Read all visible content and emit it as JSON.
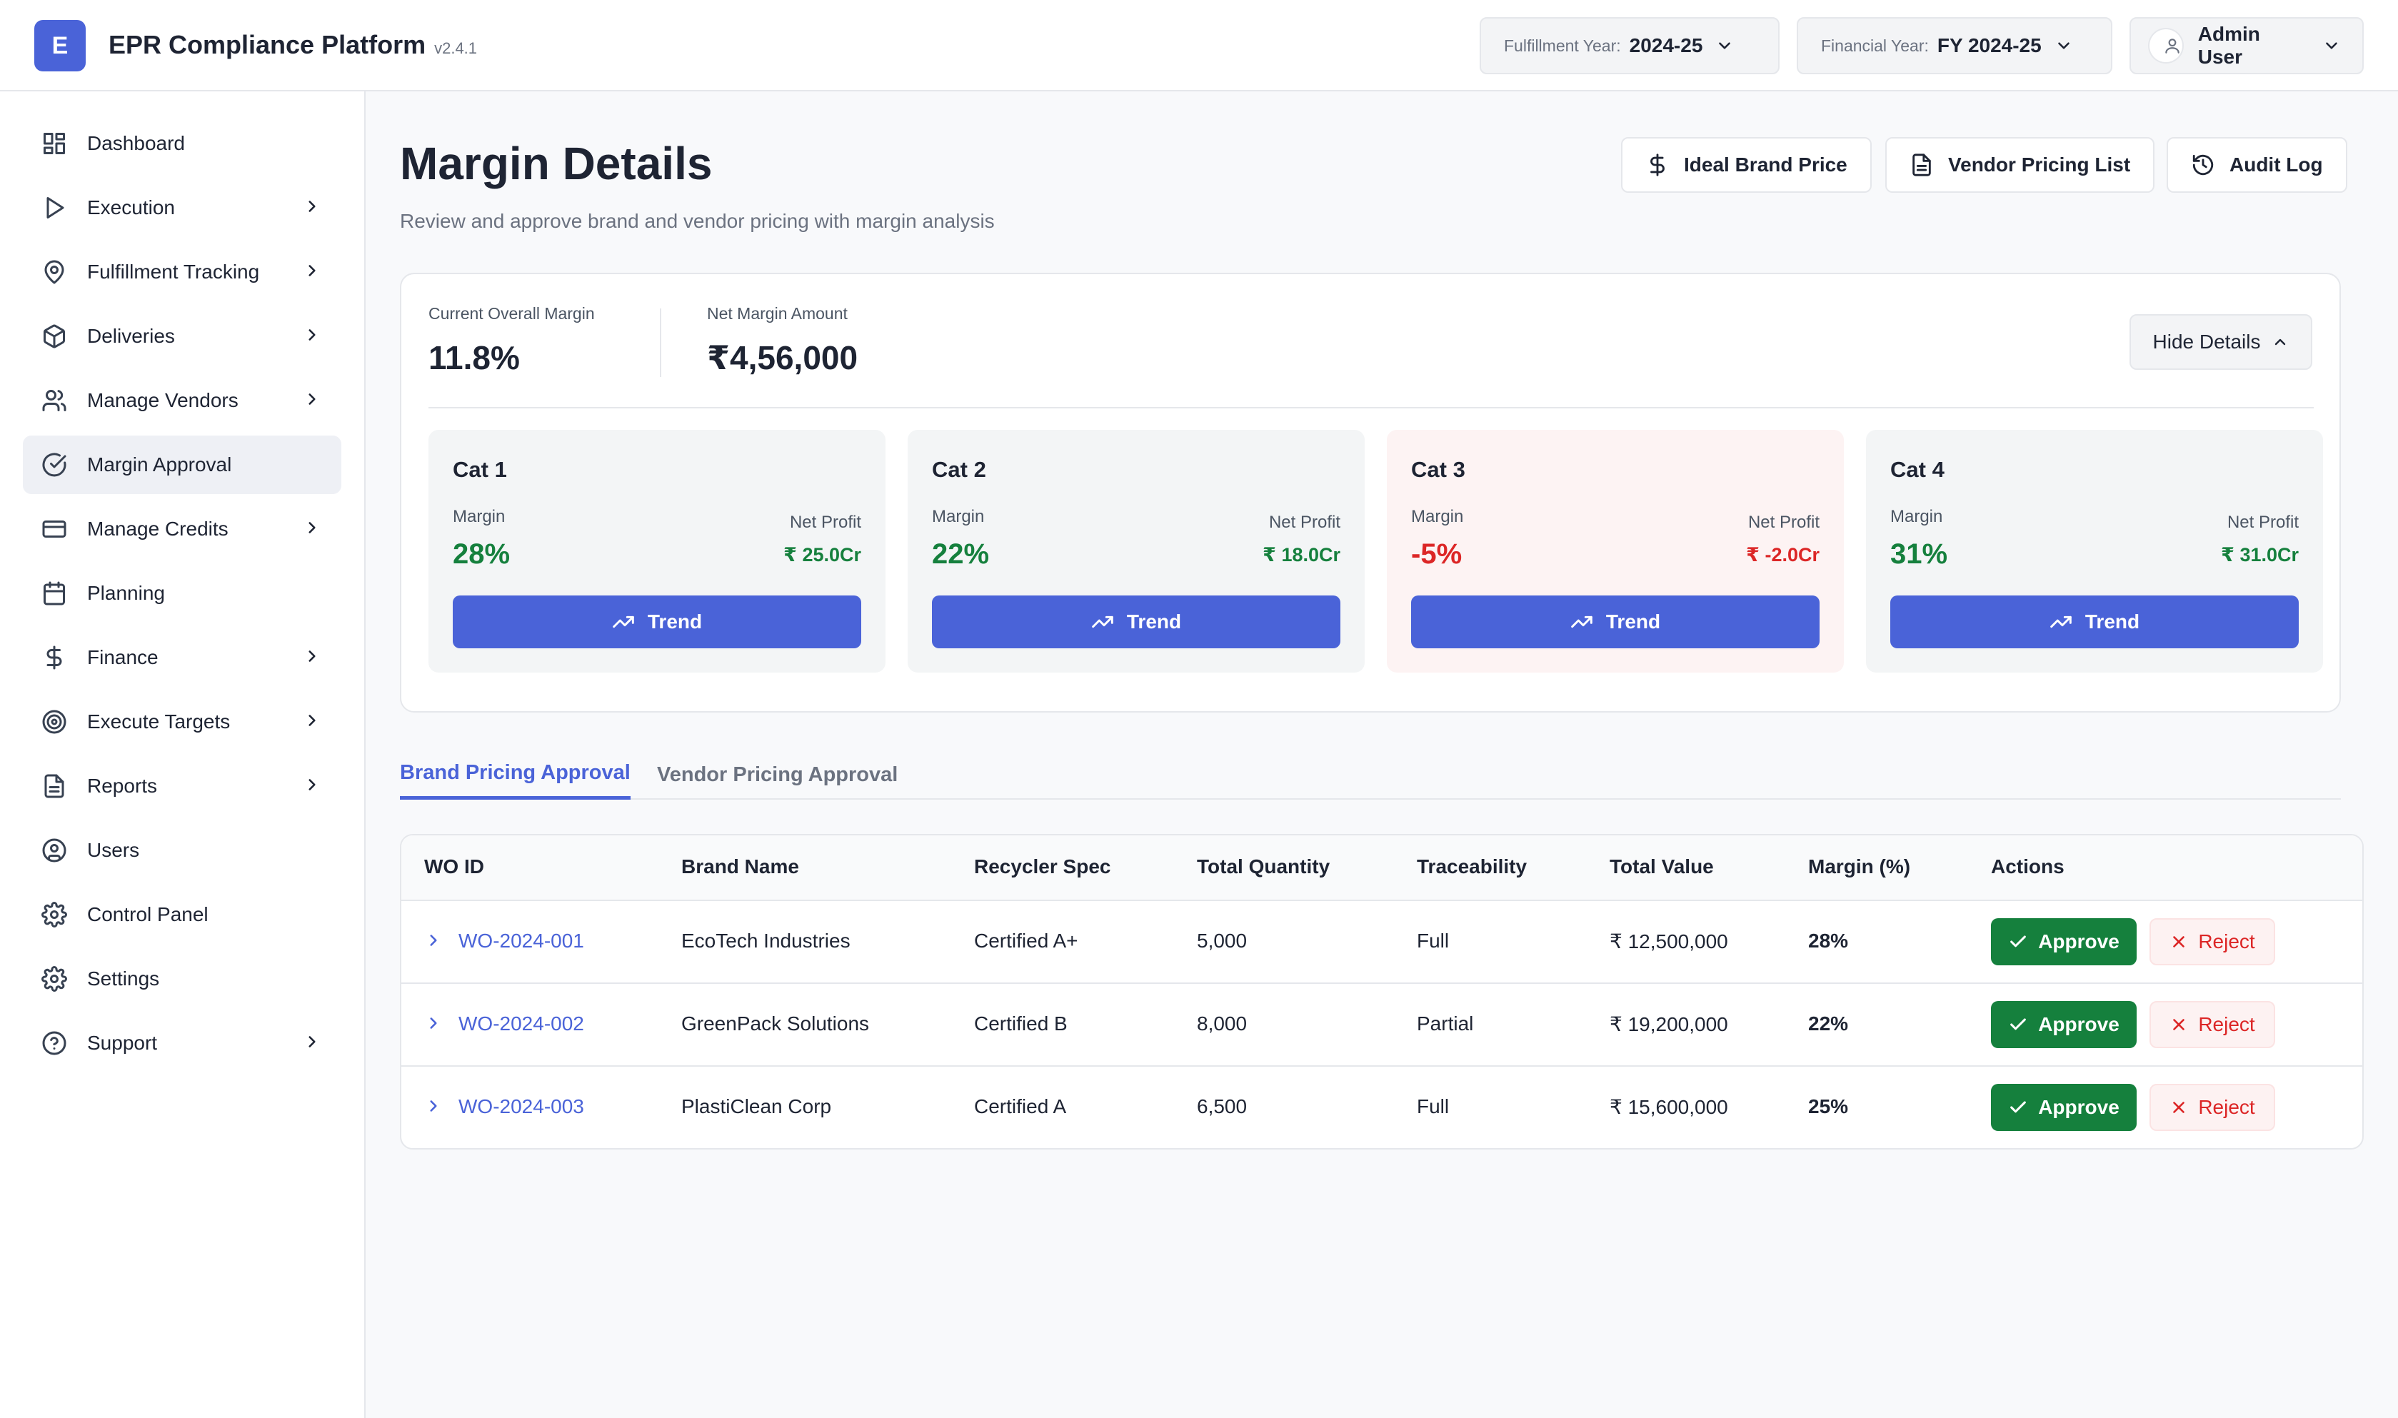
{
  "app": {
    "logo_letter": "E",
    "title": "EPR Compliance Platform",
    "version": "v2.4.1"
  },
  "topbar": {
    "fulfillment_year": {
      "label": "Fulfillment Year:",
      "value": "2024-25"
    },
    "financial_year": {
      "label": "Financial Year:",
      "value": "FY 2024-25"
    },
    "user": {
      "name": "Admin User"
    }
  },
  "sidebar": {
    "items": [
      {
        "label": "Dashboard",
        "icon": "grid-icon",
        "chevron": false
      },
      {
        "label": "Execution",
        "icon": "play-icon",
        "chevron": true
      },
      {
        "label": "Fulfillment Tracking",
        "icon": "map-pin-icon",
        "chevron": true
      },
      {
        "label": "Deliveries",
        "icon": "box-icon",
        "chevron": true
      },
      {
        "label": "Manage Vendors",
        "icon": "users-icon",
        "chevron": true
      },
      {
        "label": "Margin Approval",
        "icon": "check-circle-icon",
        "chevron": false,
        "active": true
      },
      {
        "label": "Manage Credits",
        "icon": "credit-card-icon",
        "chevron": true
      },
      {
        "label": "Planning",
        "icon": "calendar-icon",
        "chevron": false
      },
      {
        "label": "Finance",
        "icon": "dollar-icon",
        "chevron": true
      },
      {
        "label": "Execute Targets",
        "icon": "target-icon",
        "chevron": true
      },
      {
        "label": "Reports",
        "icon": "file-text-icon",
        "chevron": true
      },
      {
        "label": "Users",
        "icon": "user-circle-icon",
        "chevron": false
      },
      {
        "label": "Control Panel",
        "icon": "gear-icon",
        "chevron": false
      },
      {
        "label": "Settings",
        "icon": "gear-icon",
        "chevron": false
      },
      {
        "label": "Support",
        "icon": "help-circle-icon",
        "chevron": true
      }
    ]
  },
  "header": {
    "title": "Margin Details",
    "subtitle": "Review and approve brand and vendor pricing with margin analysis",
    "buttons": {
      "ideal_brand_price": "Ideal Brand Price",
      "vendor_pricing_list": "Vendor Pricing List",
      "audit_log": "Audit Log"
    }
  },
  "summary": {
    "overall_margin_label": "Current Overall Margin",
    "overall_margin_value": "11.8%",
    "net_margin_label": "Net Margin Amount",
    "net_margin_value": "₹4,56,000",
    "hide_details": "Hide Details",
    "margin_label": "Margin",
    "net_profit_label": "Net Profit",
    "trend_label": "Trend",
    "categories": [
      {
        "name": "Cat 1",
        "margin": "28%",
        "net_profit": "₹ 25.0Cr",
        "status": "positive"
      },
      {
        "name": "Cat 2",
        "margin": "22%",
        "net_profit": "₹ 18.0Cr",
        "status": "positive"
      },
      {
        "name": "Cat 3",
        "margin": "-5%",
        "net_profit": "₹ -2.0Cr",
        "status": "negative"
      },
      {
        "name": "Cat 4",
        "margin": "31%",
        "net_profit": "₹ 31.0Cr",
        "status": "positive"
      }
    ]
  },
  "tabs": {
    "brand": "Brand Pricing Approval",
    "vendor": "Vendor Pricing Approval"
  },
  "table": {
    "headers": [
      "WO ID",
      "Brand Name",
      "Recycler Spec",
      "Total Quantity",
      "Traceability",
      "Total Value",
      "Margin (%)",
      "Actions"
    ],
    "approve_label": "Approve",
    "reject_label": "Reject",
    "rows": [
      {
        "wo_id": "WO-2024-001",
        "brand": "EcoTech Industries",
        "spec": "Certified A+",
        "qty": "5,000",
        "trace": "Full",
        "value": "₹ 12,500,000",
        "margin": "28%"
      },
      {
        "wo_id": "WO-2024-002",
        "brand": "GreenPack Solutions",
        "spec": "Certified B",
        "qty": "8,000",
        "trace": "Partial",
        "value": "₹ 19,200,000",
        "margin": "22%"
      },
      {
        "wo_id": "WO-2024-003",
        "brand": "PlastiClean Corp",
        "spec": "Certified A",
        "qty": "6,500",
        "trace": "Full",
        "value": "₹ 15,600,000",
        "margin": "25%"
      }
    ]
  },
  "colors": {
    "accent": "#4a63d8",
    "positive": "#15803d",
    "negative": "#dc2626"
  }
}
